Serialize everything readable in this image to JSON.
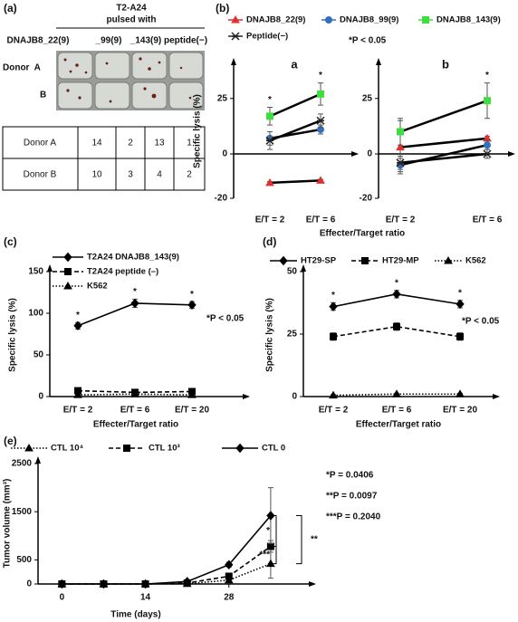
{
  "panel_a": {
    "label": "(a)",
    "header": "T2-A24",
    "subheader": "pulsed with",
    "columns": [
      "DNAJB8_22(9)",
      "_99(9)",
      "_143(9)",
      "peptide(−)"
    ],
    "image_rows": [
      "Donor  A",
      "B"
    ],
    "table": {
      "rows": [
        [
          "Donor A",
          14,
          2,
          13,
          1
        ],
        [
          "Donor B",
          10,
          3,
          4,
          2
        ]
      ]
    }
  },
  "chart_data": [
    {
      "type": "line",
      "panel_label": "(b)",
      "subtitle": "a",
      "ylabel": "Specific lysis (%)",
      "xlabel": "Effecter/Target ratio",
      "annotation": "*P < 0.05",
      "categories": [
        "E/T = 2",
        "E/T = 6"
      ],
      "ylim": [
        -20,
        40
      ],
      "yticks": [
        -20,
        0,
        25
      ],
      "line_color": "#000000",
      "significance": [
        "*",
        "*"
      ],
      "series": [
        {
          "name": "DNAJB8_22(9)",
          "color": "#e03030",
          "marker": "triangle",
          "dash": "solid",
          "values": [
            -13,
            -12
          ],
          "errors": [
            0.5,
            0.5
          ]
        },
        {
          "name": "DNAJB8_99(9)",
          "color": "#3070c0",
          "marker": "circle",
          "dash": "solid",
          "values": [
            7,
            11
          ],
          "errors": [
            3,
            2
          ]
        },
        {
          "name": "DNAJB8_143(9)",
          "color": "#40dd40",
          "marker": "square",
          "dash": "solid",
          "values": [
            17,
            27
          ],
          "errors": [
            4,
            5
          ]
        },
        {
          "name": "Peptide(−)",
          "color": "#222222",
          "marker": "x",
          "dash": "solid",
          "values": [
            6,
            15
          ],
          "errors": [
            4,
            3
          ]
        }
      ]
    },
    {
      "type": "line",
      "subtitle": "b",
      "categories": [
        "E/T = 2",
        "E/T = 6"
      ],
      "ylim": [
        -20,
        40
      ],
      "yticks": [
        -20,
        0,
        25
      ],
      "line_color": "#000000",
      "significance": [
        null,
        "*"
      ],
      "series": [
        {
          "color": "#e03030",
          "marker": "triangle",
          "dash": "solid",
          "values": [
            3,
            7
          ],
          "errors": [
            12,
            1
          ]
        },
        {
          "color": "#3070c0",
          "marker": "circle",
          "dash": "solid",
          "values": [
            -5,
            4
          ],
          "errors": [
            3,
            2
          ]
        },
        {
          "color": "#40dd40",
          "marker": "square",
          "dash": "solid",
          "values": [
            10,
            24
          ],
          "errors": [
            6,
            8
          ]
        },
        {
          "color": "#222222",
          "marker": "x",
          "dash": "solid",
          "values": [
            -4,
            0
          ],
          "errors": [
            3,
            2
          ]
        }
      ]
    },
    {
      "type": "line",
      "panel_label": "(c)",
      "ylabel": "Specific lysis (%)",
      "xlabel": "Effecter/Target ratio",
      "annotation": "*P < 0.05",
      "categories": [
        "E/T = 2",
        "E/T = 6",
        "E/T = 20"
      ],
      "ylim": [
        0,
        150
      ],
      "yticks": [
        0,
        50,
        100,
        150
      ],
      "significance": [
        "*",
        "*",
        "*"
      ],
      "series": [
        {
          "name": "T2A24 DNAJB8_143(9)",
          "color": "#000000",
          "marker": "diamond",
          "dash": "solid",
          "values": [
            85,
            112,
            110
          ],
          "errors": [
            4,
            5,
            4
          ]
        },
        {
          "name": "T2A24 peptide (–)",
          "color": "#000000",
          "marker": "square",
          "dash": "dashed",
          "values": [
            7,
            5,
            6
          ],
          "errors": [
            1,
            1,
            1
          ]
        },
        {
          "name": "K562",
          "color": "#000000",
          "marker": "triangle",
          "dash": "dotted",
          "values": [
            2,
            3,
            2
          ],
          "errors": [
            0.5,
            0.5,
            0.5
          ]
        }
      ]
    },
    {
      "type": "line",
      "panel_label": "(d)",
      "ylabel": "Specific lysis (%)",
      "xlabel": "Effecter/Target ratio",
      "annotation": "*P < 0.05",
      "categories": [
        "E/T = 2",
        "E/T = 6",
        "E/T = 20"
      ],
      "ylim": [
        0,
        50
      ],
      "yticks": [
        0,
        25,
        50
      ],
      "significance": [
        "*",
        "*",
        "*"
      ],
      "series": [
        {
          "name": "HT29-SP",
          "color": "#000000",
          "marker": "diamond",
          "dash": "solid",
          "values": [
            36,
            41,
            37
          ],
          "errors": [
            1.5,
            1.5,
            1.5
          ]
        },
        {
          "name": "HT29-MP",
          "color": "#000000",
          "marker": "square",
          "dash": "dashed",
          "values": [
            24,
            28,
            24
          ],
          "errors": [
            1.5,
            1.5,
            1.5
          ]
        },
        {
          "name": "K562",
          "color": "#000000",
          "marker": "triangle",
          "dash": "dotted",
          "values": [
            0.5,
            1,
            1
          ],
          "errors": [
            0.3,
            0.3,
            0.3
          ]
        }
      ]
    },
    {
      "type": "line",
      "panel_label": "(e)",
      "ylabel": "Tumor volume (mm³)",
      "xlabel": "Time (days)",
      "x": [
        0,
        7,
        14,
        21,
        28,
        35
      ],
      "xlim": [
        -4,
        42
      ],
      "xticks": [
        0,
        14,
        28
      ],
      "ylim": [
        0,
        2500
      ],
      "yticks": [
        0,
        500,
        1500,
        2500
      ],
      "annotations": [
        "*P = 0.0406",
        "**P = 0.0097",
        "***P = 0.2040"
      ],
      "bracket_labels": [
        "*",
        "***",
        "**"
      ],
      "series": [
        {
          "name": "CTL 10⁴",
          "color": "#000000",
          "marker": "triangle",
          "dash": "dotted",
          "values": [
            0,
            0,
            0,
            5,
            80,
            420
          ],
          "errors": [
            0,
            0,
            0,
            5,
            30,
            300
          ]
        },
        {
          "name": "CTL 10³",
          "color": "#000000",
          "marker": "square",
          "dash": "dashed",
          "values": [
            0,
            0,
            0,
            20,
            160,
            780
          ],
          "errors": [
            0,
            0,
            0,
            10,
            40,
            120
          ]
        },
        {
          "name": "CTL 0",
          "color": "#000000",
          "marker": "diamond",
          "dash": "solid",
          "values": [
            0,
            0,
            0,
            50,
            400,
            1420
          ],
          "errors": [
            0,
            0,
            0,
            20,
            50,
            580
          ]
        }
      ]
    }
  ]
}
